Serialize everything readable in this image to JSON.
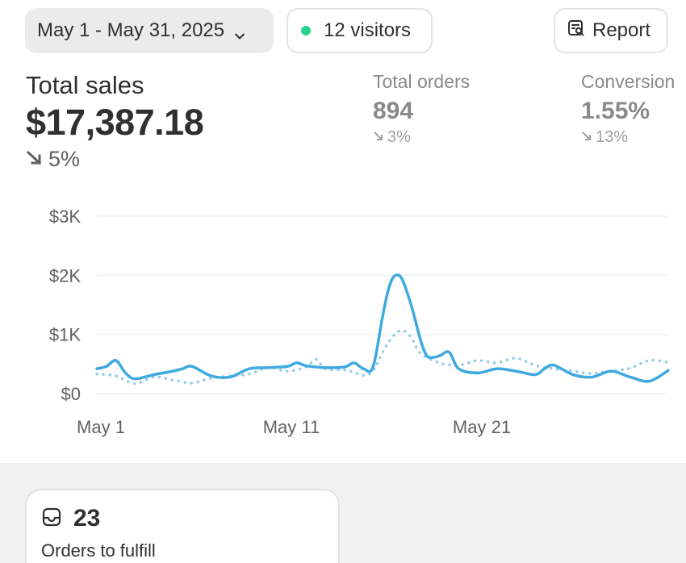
{
  "topbar": {
    "date_range": "May 1 - May 31, 2025",
    "visitors": "12 visitors",
    "report": "Report"
  },
  "metrics": {
    "total_sales": {
      "label": "Total sales",
      "value": "$17,387.18",
      "delta": "5%"
    },
    "total_orders": {
      "label": "Total orders",
      "value": "894",
      "delta": "3%"
    },
    "conversion": {
      "label": "Conversion",
      "value": "1.55%",
      "delta": "13%"
    }
  },
  "chart_data": {
    "type": "line",
    "y_ticks": [
      "$3K",
      "$2K",
      "$1K",
      "$0"
    ],
    "y_tick_values": [
      3000,
      2000,
      1000,
      0
    ],
    "x_ticks": [
      "May 1",
      "May 11",
      "May 21"
    ],
    "x_tick_days": [
      1,
      11,
      21
    ],
    "ylim": [
      0,
      3000
    ],
    "xlim": [
      1,
      31
    ],
    "grid": true,
    "colors": {
      "current": "#3fa9e0",
      "previous": "#8fcde8"
    },
    "series": [
      {
        "style": "solid",
        "x": [
          1,
          1.5,
          2,
          2.5,
          3,
          4,
          5,
          5.5,
          6,
          7,
          8,
          9,
          10,
          11,
          11.5,
          12,
          13,
          14,
          14.5,
          15,
          15.5,
          16,
          16.3,
          16.6,
          17,
          17.5,
          18,
          18.3,
          18.6,
          19,
          19.5,
          20,
          21,
          22,
          23,
          24,
          24.5,
          25,
          26,
          27,
          28,
          29,
          30,
          31
        ],
        "y": [
          420,
          460,
          560,
          350,
          250,
          320,
          380,
          420,
          460,
          300,
          280,
          420,
          440,
          460,
          520,
          470,
          440,
          450,
          520,
          420,
          450,
          1300,
          1750,
          1980,
          1950,
          1500,
          900,
          650,
          610,
          640,
          700,
          420,
          350,
          420,
          380,
          320,
          420,
          480,
          320,
          280,
          380,
          280,
          210,
          390
        ]
      },
      {
        "style": "dotted",
        "x": [
          1,
          2,
          3,
          4,
          5,
          6,
          7,
          8,
          9,
          10,
          11,
          12,
          12.5,
          13,
          14,
          14.5,
          15,
          15.5,
          16,
          16.5,
          17,
          17.5,
          18,
          19,
          20,
          21,
          22,
          23,
          24,
          25,
          26,
          27,
          28,
          29,
          30,
          31
        ],
        "y": [
          330,
          300,
          170,
          280,
          230,
          180,
          260,
          300,
          330,
          440,
          380,
          450,
          580,
          420,
          400,
          360,
          310,
          380,
          700,
          950,
          1070,
          950,
          680,
          520,
          480,
          560,
          520,
          600,
          480,
          420,
          380,
          340,
          380,
          430,
          560,
          530
        ]
      }
    ]
  },
  "fulfill_card": {
    "count": "23",
    "caption": "Orders to fulfill"
  }
}
